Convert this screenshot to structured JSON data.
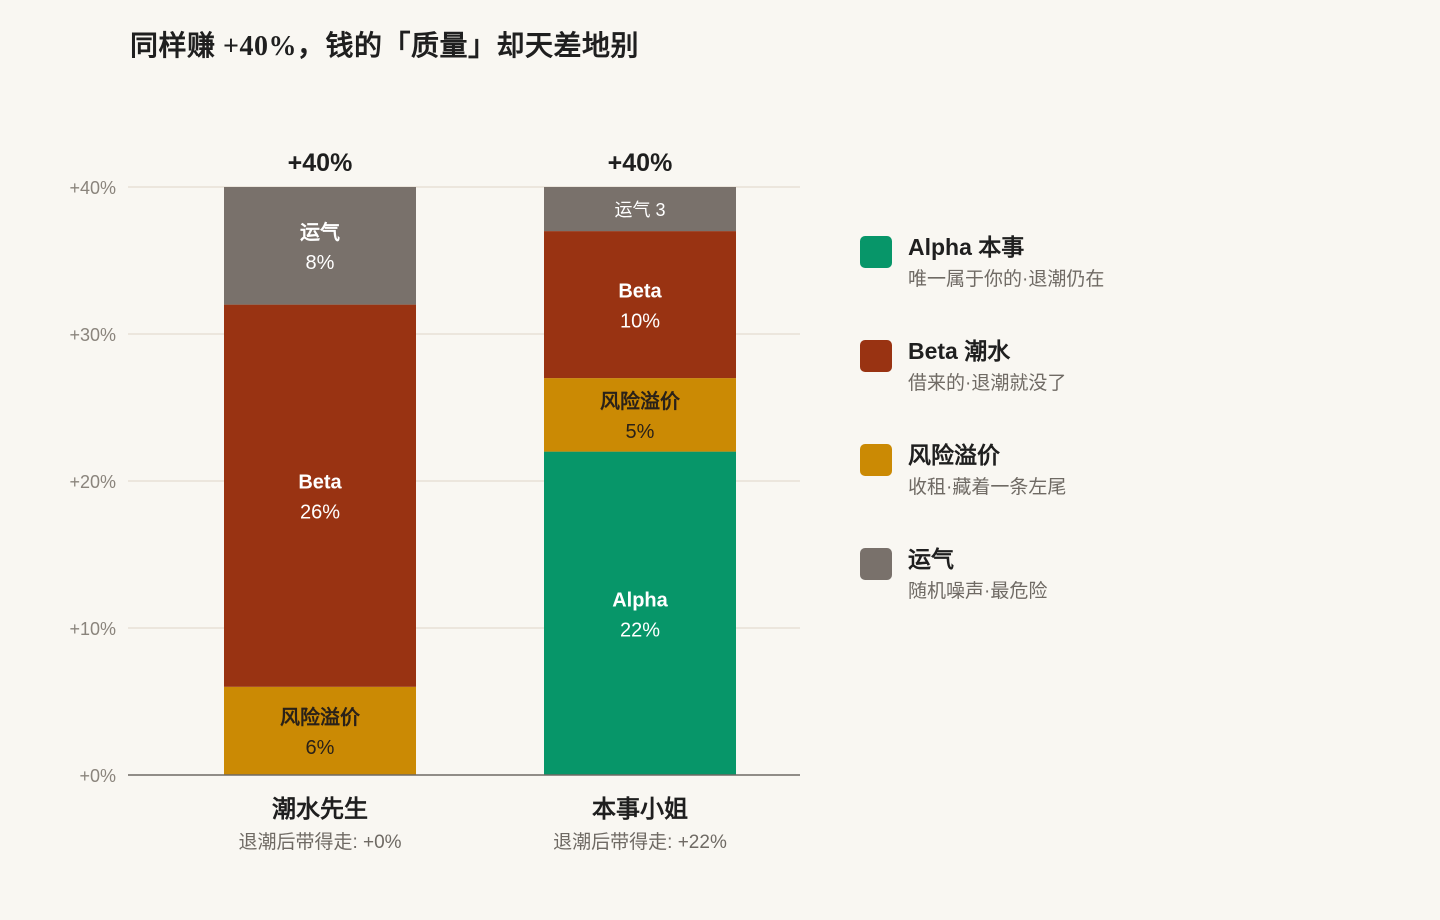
{
  "title": "同样赚 +40%，钱的「质量」却天差地别",
  "chart_data": {
    "type": "bar",
    "stacked": true,
    "categories": [
      "潮水先生",
      "本事小姐"
    ],
    "category_notes": [
      "退潮后带得走: +0%",
      "退潮后带得走: +22%"
    ],
    "totals": [
      "+40%",
      "+40%"
    ],
    "ylim": [
      0,
      40
    ],
    "yticks": [
      0,
      10,
      20,
      30,
      40
    ],
    "ytick_labels": [
      "+0%",
      "+10%",
      "+20%",
      "+30%",
      "+40%"
    ],
    "grid": true,
    "legend_position": "right",
    "series": [
      {
        "key": "alpha",
        "values": [
          0,
          22
        ],
        "segment_labels": [
          "",
          "Alpha"
        ],
        "value_labels": [
          "",
          "22%"
        ]
      },
      {
        "key": "premium",
        "values": [
          6,
          5
        ],
        "segment_labels": [
          "风险溢价",
          "风险溢价"
        ],
        "value_labels": [
          "6%",
          "5%"
        ]
      },
      {
        "key": "beta",
        "values": [
          26,
          10
        ],
        "segment_labels": [
          "Beta",
          "Beta"
        ],
        "value_labels": [
          "26%",
          "10%"
        ]
      },
      {
        "key": "luck",
        "values": [
          8,
          3
        ],
        "segment_labels": [
          "运气",
          "运气 3"
        ],
        "value_labels": [
          "8%",
          ""
        ]
      }
    ]
  },
  "legend": [
    {
      "key": "alpha",
      "label": "Alpha 本事",
      "desc": "唯一属于你的·退潮仍在",
      "color": "#079669"
    },
    {
      "key": "beta",
      "label": "Beta 潮水",
      "desc": "借来的·退潮就没了",
      "color": "#993312"
    },
    {
      "key": "premium",
      "label": "风险溢价",
      "desc": "收租·藏着一条左尾",
      "color": "#cb8a04"
    },
    {
      "key": "luck",
      "label": "运气",
      "desc": "随机噪声·最危险",
      "color": "#79716b"
    }
  ]
}
